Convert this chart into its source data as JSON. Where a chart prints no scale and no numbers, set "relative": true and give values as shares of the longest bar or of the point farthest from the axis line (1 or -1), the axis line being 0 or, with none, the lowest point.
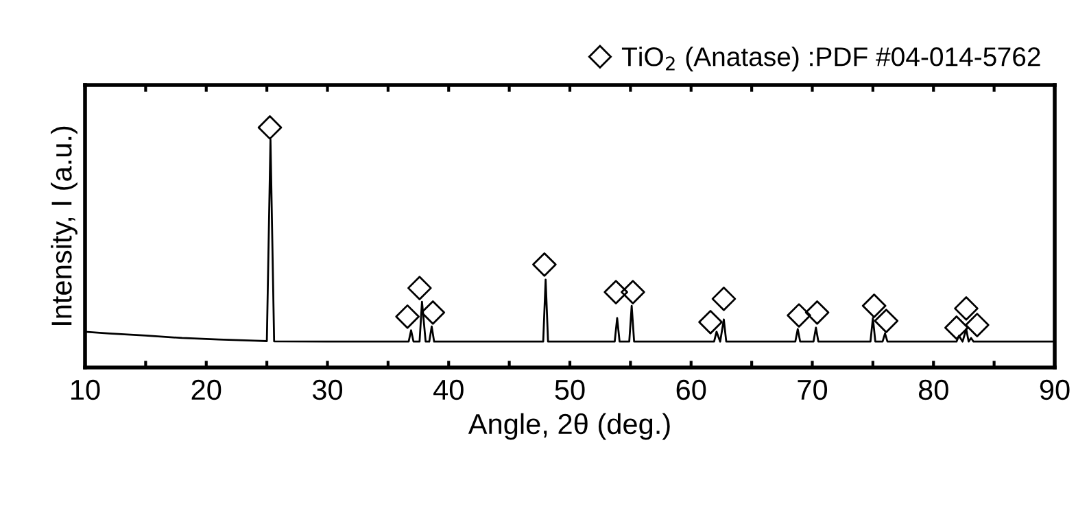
{
  "chart_data": {
    "type": "line",
    "relative": true,
    "xlabel": "Angle, 2θ (deg.)",
    "ylabel": "Intensity, I (a.u.)",
    "xlim": [
      10,
      90
    ],
    "xticks": [
      10,
      {
        "value": 15,
        "label": null
      },
      20,
      {
        "value": 25,
        "label": null
      },
      30,
      {
        "value": 35,
        "label": null
      },
      40,
      {
        "value": 45,
        "label": null
      },
      50,
      {
        "value": 55,
        "label": null
      },
      60,
      {
        "value": 65,
        "label": null
      },
      70,
      {
        "value": 75,
        "label": null
      },
      80,
      {
        "value": 85,
        "label": null
      },
      90
    ],
    "tick_labels": "x",
    "grid": false,
    "legend": "top right",
    "series": [
      {
        "color": "#000000",
        "marker": "none",
        "line_style": "solid",
        "x": [
          10,
          12,
          15,
          18,
          21,
          24,
          25.0,
          25.3,
          25.6,
          30,
          36.7,
          36.9,
          37.1,
          37.6,
          37.8,
          38.1,
          38.4,
          38.6,
          38.8,
          44,
          47.8,
          48.0,
          48.2,
          53.7,
          53.9,
          54.1,
          54.9,
          55.1,
          55.3,
          61.9,
          62.1,
          62.4,
          62.7,
          62.9,
          68.6,
          68.8,
          69.0,
          70.1,
          70.3,
          70.5,
          74.8,
          75.0,
          75.2,
          75.8,
          76.0,
          76.2,
          81.9,
          82.1,
          82.4,
          82.7,
          82.9,
          83.1,
          83.3,
          90
        ],
        "values": [
          0.149,
          0.142,
          0.133,
          0.123,
          0.117,
          0.112,
          0.11,
          0.949,
          0.109,
          0.108,
          0.108,
          0.155,
          0.108,
          0.108,
          0.274,
          0.108,
          0.108,
          0.171,
          0.108,
          0.108,
          0.108,
          0.366,
          0.108,
          0.108,
          0.206,
          0.108,
          0.108,
          0.257,
          0.108,
          0.108,
          0.149,
          0.108,
          0.2,
          0.108,
          0.108,
          0.16,
          0.108,
          0.108,
          0.166,
          0.108,
          0.108,
          0.206,
          0.108,
          0.108,
          0.142,
          0.108,
          0.108,
          0.132,
          0.108,
          0.16,
          0.108,
          0.123,
          0.108,
          0.108
        ]
      },
      {
        "type": "scatter",
        "name": "TiO$_{2}$ (Anatase) :PDF #04-014-5762",
        "color": "#000000",
        "marker": "diamond",
        "x": [
          25.25,
          36.6,
          37.6,
          38.7,
          47.9,
          53.8,
          55.2,
          61.6,
          62.7,
          68.9,
          70.4,
          75.1,
          76.1,
          81.9,
          82.7,
          83.6
        ],
        "values": [
          1.0,
          0.212,
          0.331,
          0.229,
          0.429,
          0.314,
          0.314,
          0.189,
          0.286,
          0.217,
          0.229,
          0.257,
          0.194,
          0.166,
          0.246,
          0.177
        ]
      }
    ]
  }
}
